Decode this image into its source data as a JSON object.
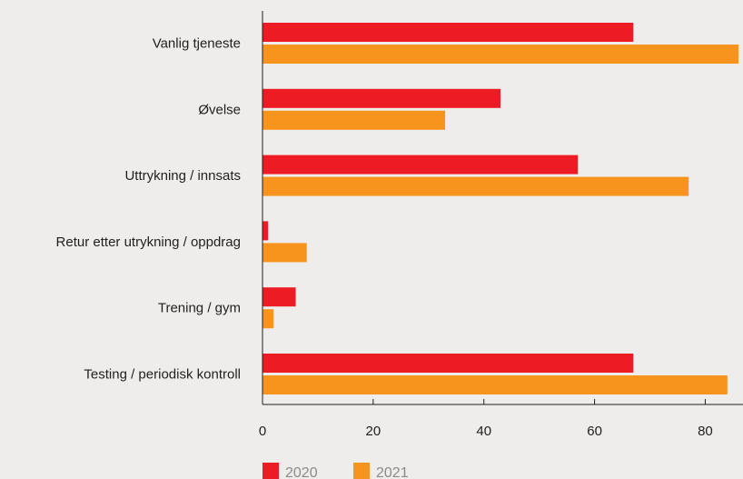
{
  "colors": {
    "background": "#efedeb",
    "series_2020": "#ed1c24",
    "series_2021": "#f7941d",
    "axis": "#1f1f1f"
  },
  "chart_data": {
    "type": "bar",
    "orientation": "horizontal",
    "title": "",
    "xlabel": "",
    "ylabel": "",
    "categories": [
      "Vanlig tjeneste",
      "Øvelse",
      "Uttrykning / innsats",
      "Retur etter utrykning / oppdrag",
      "Trening / gym",
      "Testing / periodisk kontroll"
    ],
    "series": [
      {
        "name": "2020",
        "color": "#ed1c24",
        "values": [
          67,
          43,
          57,
          1,
          6,
          67
        ]
      },
      {
        "name": "2021",
        "color": "#f7941d",
        "values": [
          86,
          33,
          77,
          8,
          2,
          84
        ]
      }
    ],
    "xlim": [
      0,
      86
    ],
    "xticks": [
      "0",
      "20",
      "40",
      "60",
      "80"
    ],
    "xtick_values": [
      0,
      20,
      40,
      60,
      80
    ],
    "grid": false,
    "legend_position": "bottom-left"
  }
}
